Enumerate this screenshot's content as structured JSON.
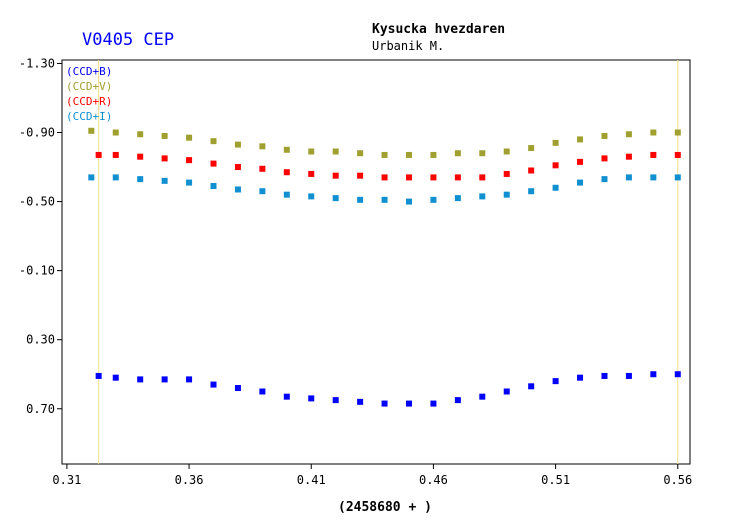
{
  "chart_data": {
    "type": "scatter",
    "title": "V0405 CEP",
    "observatory": "Kysucka hvezdaren",
    "observer": "Urbanik M.",
    "xlabel": "(2458680 + )",
    "ylabel": "",
    "x_ticks": [
      "0.31",
      "0.36",
      "0.41",
      "0.46",
      "0.51",
      "0.56"
    ],
    "y_ticks": [
      "-1.30",
      "-0.90",
      "-0.50",
      "-0.10",
      "0.30",
      "0.70"
    ],
    "xlim": [
      0.308,
      0.565
    ],
    "ylim": [
      1.02,
      -1.32
    ],
    "y_inverted": true,
    "grid": false,
    "legend_position": "top-left",
    "colors": {
      "B": "#0000ff",
      "V": "#a0a030",
      "R": "#ff0000",
      "I": "#1090d0",
      "boundary": "#f0e080",
      "title": "#0000ff"
    },
    "series": [
      {
        "name": "(CCD+B)",
        "color": "#0000ff",
        "x": [
          0.323,
          0.33,
          0.34,
          0.35,
          0.36,
          0.37,
          0.38,
          0.39,
          0.4,
          0.41,
          0.42,
          0.43,
          0.44,
          0.45,
          0.46,
          0.47,
          0.48,
          0.49,
          0.5,
          0.51,
          0.52,
          0.53,
          0.54,
          0.55,
          0.56
        ],
        "y": [
          0.51,
          0.52,
          0.53,
          0.53,
          0.53,
          0.56,
          0.58,
          0.6,
          0.63,
          0.64,
          0.65,
          0.66,
          0.67,
          0.67,
          0.67,
          0.65,
          0.63,
          0.6,
          0.57,
          0.54,
          0.52,
          0.51,
          0.51,
          0.5,
          0.5
        ]
      },
      {
        "name": "(CCD+V)",
        "color": "#a0a030",
        "x": [
          0.32,
          0.33,
          0.34,
          0.35,
          0.36,
          0.37,
          0.38,
          0.39,
          0.4,
          0.41,
          0.42,
          0.43,
          0.44,
          0.45,
          0.46,
          0.47,
          0.48,
          0.49,
          0.5,
          0.51,
          0.52,
          0.53,
          0.54,
          0.55,
          0.56
        ],
        "y": [
          -0.91,
          -0.9,
          -0.89,
          -0.88,
          -0.87,
          -0.85,
          -0.83,
          -0.82,
          -0.8,
          -0.79,
          -0.79,
          -0.78,
          -0.77,
          -0.77,
          -0.77,
          -0.78,
          -0.78,
          -0.79,
          -0.81,
          -0.84,
          -0.86,
          -0.88,
          -0.89,
          -0.9,
          -0.9
        ]
      },
      {
        "name": "(CCD+R)",
        "color": "#ff0000",
        "x": [
          0.323,
          0.33,
          0.34,
          0.35,
          0.36,
          0.37,
          0.38,
          0.39,
          0.4,
          0.41,
          0.42,
          0.43,
          0.44,
          0.45,
          0.46,
          0.47,
          0.48,
          0.49,
          0.5,
          0.51,
          0.52,
          0.53,
          0.54,
          0.55,
          0.56
        ],
        "y": [
          -0.77,
          -0.77,
          -0.76,
          -0.75,
          -0.74,
          -0.72,
          -0.7,
          -0.69,
          -0.67,
          -0.66,
          -0.65,
          -0.65,
          -0.64,
          -0.64,
          -0.64,
          -0.64,
          -0.64,
          -0.66,
          -0.68,
          -0.71,
          -0.73,
          -0.75,
          -0.76,
          -0.77,
          -0.77
        ]
      },
      {
        "name": "(CCD+I)",
        "color": "#1090d0",
        "x": [
          0.32,
          0.33,
          0.34,
          0.35,
          0.36,
          0.37,
          0.38,
          0.39,
          0.4,
          0.41,
          0.42,
          0.43,
          0.44,
          0.45,
          0.46,
          0.47,
          0.48,
          0.49,
          0.5,
          0.51,
          0.52,
          0.53,
          0.54,
          0.55,
          0.56
        ],
        "y": [
          -0.64,
          -0.64,
          -0.63,
          -0.62,
          -0.61,
          -0.59,
          -0.57,
          -0.56,
          -0.54,
          -0.53,
          -0.52,
          -0.51,
          -0.51,
          -0.5,
          -0.51,
          -0.52,
          -0.53,
          -0.54,
          -0.56,
          -0.58,
          -0.61,
          -0.63,
          -0.64,
          -0.64,
          -0.64
        ]
      }
    ],
    "vertical_lines_x": [
      0.323,
      0.56
    ]
  }
}
